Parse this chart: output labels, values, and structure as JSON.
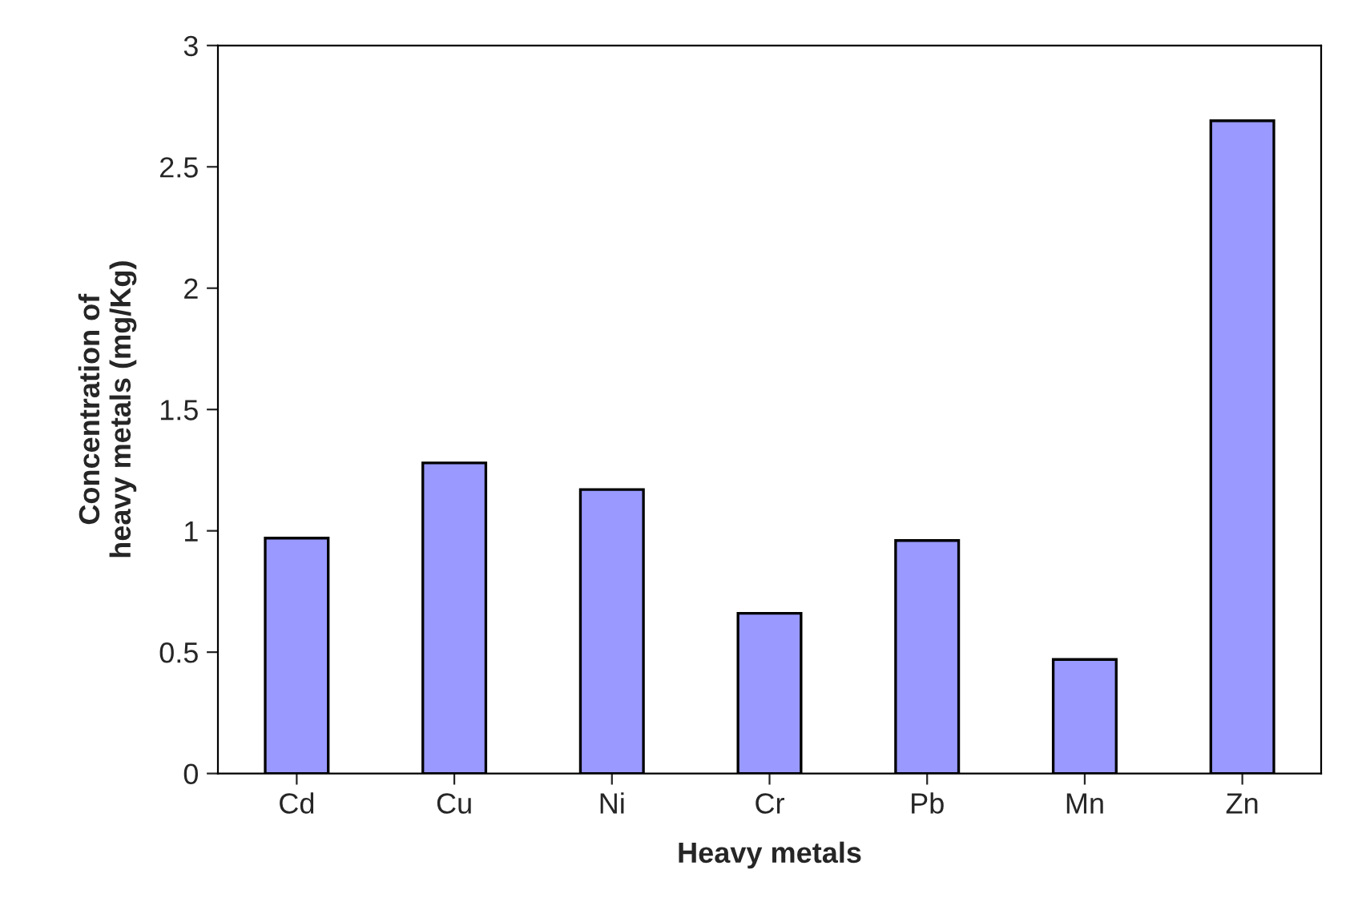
{
  "chart_data": {
    "type": "bar",
    "xlabel": "Heavy metals",
    "ylabel": "Concentration of\nheavy metals (mg/Kg)",
    "categories": [
      "Cd",
      "Cu",
      "Ni",
      "Cr",
      "Pb",
      "Mn",
      "Zn"
    ],
    "values": [
      0.97,
      1.28,
      1.17,
      0.66,
      0.96,
      0.47,
      2.69
    ],
    "color": "#9999ff",
    "ylim": [
      0,
      3
    ],
    "yticks": [
      0,
      0.5,
      1,
      1.5,
      2,
      2.5,
      3
    ],
    "grid": false,
    "legend": false
  }
}
